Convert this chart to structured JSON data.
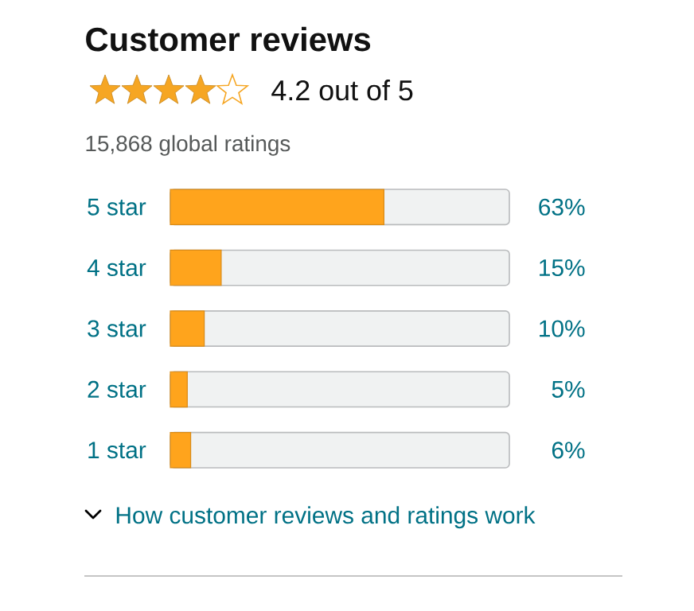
{
  "chart_data": {
    "type": "bar",
    "orientation": "horizontal",
    "title": "Customer reviews",
    "annotations": [
      "4.2 out of 5",
      "15,868 global ratings",
      "How customer reviews and ratings work"
    ],
    "categories": [
      "5 star",
      "4 star",
      "3 star",
      "2 star",
      "1 star"
    ],
    "values": [
      63,
      15,
      10,
      5,
      6
    ],
    "value_labels": [
      "63%",
      "15%",
      "10%",
      "5%",
      "6%"
    ],
    "color": "#ffa41c",
    "xlim": [
      0,
      100
    ],
    "tick_labels": "y"
  }
}
